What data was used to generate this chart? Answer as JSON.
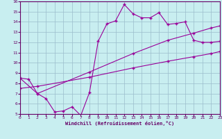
{
  "title": "",
  "xlabel": "Windchill (Refroidissement éolien,°C)",
  "ylabel": "",
  "bg_color": "#c8eef0",
  "grid_color": "#9bbccc",
  "line_color": "#990099",
  "spine_color": "#660066",
  "xlim": [
    0,
    23
  ],
  "ylim": [
    5,
    16
  ],
  "xticks": [
    0,
    1,
    2,
    3,
    4,
    5,
    6,
    7,
    8,
    9,
    10,
    11,
    12,
    13,
    14,
    15,
    16,
    17,
    18,
    19,
    20,
    21,
    22,
    23
  ],
  "yticks": [
    5,
    6,
    7,
    8,
    9,
    10,
    11,
    12,
    13,
    14,
    15,
    16
  ],
  "line1_x": [
    0,
    1,
    2,
    3,
    4,
    5,
    6,
    7,
    8,
    9,
    10,
    11,
    12,
    13,
    14,
    15,
    16,
    17,
    18,
    19,
    20,
    21,
    22,
    23
  ],
  "line1_y": [
    8.5,
    8.4,
    7.0,
    6.5,
    5.2,
    5.3,
    5.7,
    4.85,
    7.1,
    12.1,
    13.8,
    14.1,
    15.7,
    14.8,
    14.4,
    14.4,
    14.9,
    13.75,
    13.85,
    14.0,
    12.2,
    12.0,
    12.0,
    12.1
  ],
  "line1_marker_x": [
    0,
    1,
    2,
    3,
    4,
    5,
    6,
    7,
    8,
    9,
    10,
    11,
    12,
    13,
    14,
    15,
    16,
    17,
    18,
    19,
    20,
    21,
    22,
    23
  ],
  "line1_marker_y": [
    8.5,
    8.4,
    7.0,
    6.5,
    5.2,
    5.3,
    5.7,
    4.85,
    7.1,
    12.1,
    13.8,
    14.1,
    15.7,
    14.8,
    14.4,
    14.4,
    14.9,
    13.75,
    13.85,
    14.0,
    12.2,
    12.0,
    12.0,
    12.1
  ],
  "line2_x": [
    0,
    2,
    8,
    13,
    17,
    20,
    22,
    23
  ],
  "line2_y": [
    8.5,
    7.0,
    9.1,
    10.9,
    12.2,
    12.9,
    13.4,
    13.6
  ],
  "line3_x": [
    0,
    2,
    8,
    13,
    17,
    20,
    22,
    23
  ],
  "line3_y": [
    7.5,
    7.7,
    8.6,
    9.5,
    10.15,
    10.6,
    10.9,
    11.1
  ]
}
